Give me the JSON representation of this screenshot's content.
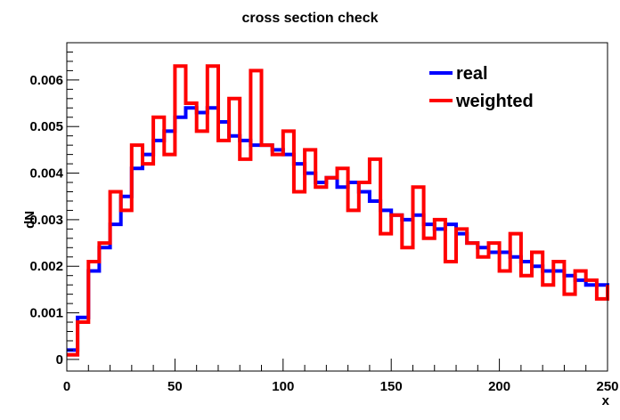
{
  "chart_data": {
    "type": "line",
    "title": "cross section check",
    "xlabel": "x",
    "ylabel": "dN",
    "xlim": [
      0,
      250
    ],
    "ylim": [
      -0.00025,
      0.0068
    ],
    "grid": false,
    "legend_position": "top-right",
    "x_ticks": [
      0,
      50,
      100,
      150,
      200,
      250
    ],
    "x_tick_labels": [
      "0",
      "50",
      "100",
      "150",
      "200",
      "250"
    ],
    "y_ticks": [
      0,
      0.001,
      0.002,
      0.003,
      0.004,
      0.005,
      0.006
    ],
    "y_tick_labels": [
      "0",
      "0.001",
      "0.002",
      "0.003",
      "0.004",
      "0.005",
      "0.006"
    ],
    "x": [
      0,
      5,
      10,
      15,
      20,
      25,
      30,
      35,
      40,
      45,
      50,
      55,
      60,
      65,
      70,
      75,
      80,
      85,
      90,
      95,
      100,
      105,
      110,
      115,
      120,
      125,
      130,
      135,
      140,
      145,
      150,
      155,
      160,
      165,
      170,
      175,
      180,
      185,
      190,
      195,
      200,
      205,
      210,
      215,
      220,
      225,
      230,
      235,
      240,
      245,
      250
    ],
    "series": [
      {
        "name": "real",
        "color": "#0000ff",
        "values": [
          0.0002,
          0.0009,
          0.0019,
          0.0024,
          0.0029,
          0.0035,
          0.0041,
          0.0044,
          0.0047,
          0.0049,
          0.0052,
          0.0054,
          0.0053,
          0.0054,
          0.0051,
          0.0048,
          0.0047,
          0.0046,
          0.0046,
          0.0045,
          0.0044,
          0.0042,
          0.004,
          0.0038,
          0.0039,
          0.0037,
          0.0038,
          0.0036,
          0.0034,
          0.0032,
          0.0031,
          0.003,
          0.0031,
          0.0029,
          0.0028,
          0.0029,
          0.0027,
          0.0025,
          0.0024,
          0.0023,
          0.0023,
          0.0022,
          0.0021,
          0.002,
          0.0019,
          0.0019,
          0.0018,
          0.0017,
          0.0016,
          0.0016,
          0.0015
        ]
      },
      {
        "name": "weighted",
        "color": "#ff0000",
        "values": [
          0.0001,
          0.0008,
          0.0021,
          0.0025,
          0.0036,
          0.0032,
          0.0046,
          0.0042,
          0.0052,
          0.0044,
          0.0063,
          0.0055,
          0.0049,
          0.0063,
          0.0047,
          0.0056,
          0.0043,
          0.0062,
          0.0046,
          0.0044,
          0.0049,
          0.0036,
          0.0045,
          0.0037,
          0.0039,
          0.0041,
          0.0032,
          0.0038,
          0.0043,
          0.0027,
          0.0031,
          0.0024,
          0.0037,
          0.0026,
          0.003,
          0.0021,
          0.0028,
          0.0025,
          0.0022,
          0.0025,
          0.0019,
          0.0027,
          0.0018,
          0.0023,
          0.0016,
          0.0021,
          0.0014,
          0.0019,
          0.0017,
          0.0013,
          0.0016
        ]
      }
    ]
  }
}
